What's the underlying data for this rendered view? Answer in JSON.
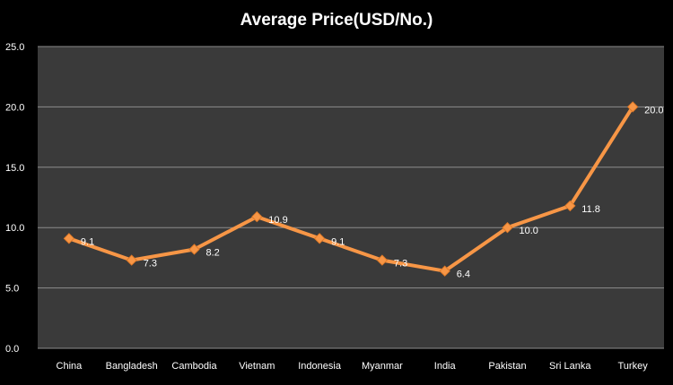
{
  "chart_data": {
    "type": "line",
    "title": "Average Price(USD/No.)",
    "xlabel": "",
    "ylabel": "",
    "categories": [
      "China",
      "Bangladesh",
      "Cambodia",
      "Vietnam",
      "Indonesia",
      "Myanmar",
      "India",
      "Pakistan",
      "Sri Lanka",
      "Turkey"
    ],
    "series": [
      {
        "values": [
          9.1,
          7.3,
          8.2,
          10.9,
          9.1,
          7.3,
          6.4,
          10.0,
          11.8,
          20.0
        ],
        "data_labels": [
          "9.1",
          "7.3",
          "8.2",
          "10.9",
          "9.1",
          "7.3",
          "6.4",
          "10.0",
          "11.8",
          "20.0"
        ],
        "color": "#f79646",
        "marker": "diamond"
      }
    ],
    "ylim": [
      0,
      25
    ],
    "y_ticks": [
      0,
      5,
      10,
      15,
      20,
      25
    ],
    "y_tick_labels": [
      "0.0",
      "5.0",
      "10.0",
      "15.0",
      "20.0",
      "25.0"
    ],
    "grid": true,
    "legend": "none",
    "colors": {
      "background": "#000000",
      "plot_area": "#3a3a3a",
      "gridline": "#8c8c8c",
      "text": "#ffffff"
    }
  }
}
